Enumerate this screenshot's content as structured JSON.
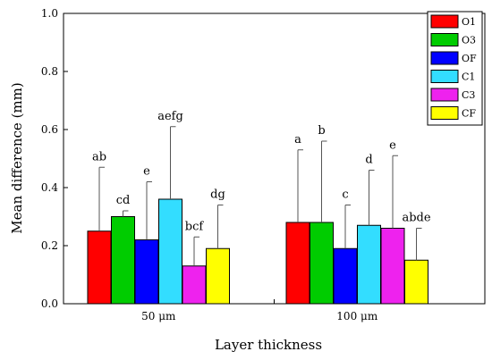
{
  "chart_data": {
    "type": "bar",
    "title": "",
    "xlabel": "Layer thickness",
    "ylabel": "Mean difference (mm)",
    "ylim": [
      0.0,
      1.0
    ],
    "yticks": [
      "0.0",
      "0.2",
      "0.4",
      "0.6",
      "0.8",
      "1.0"
    ],
    "categories": [
      "50 μm",
      "100 μm"
    ],
    "series": [
      {
        "name": "O1",
        "color": "#ff0000",
        "values": [
          0.25,
          0.28
        ],
        "error": [
          0.22,
          0.25
        ],
        "labels": [
          "ab",
          "a"
        ]
      },
      {
        "name": "O3",
        "color": "#00cc00",
        "values": [
          0.3,
          0.28
        ],
        "error": [
          0.02,
          0.28
        ],
        "labels": [
          "cd",
          "b"
        ]
      },
      {
        "name": "OF",
        "color": "#0000ff",
        "values": [
          0.22,
          0.19
        ],
        "error": [
          0.2,
          0.15
        ],
        "labels": [
          "e",
          "c"
        ]
      },
      {
        "name": "C1",
        "color": "#33ddff",
        "values": [
          0.36,
          0.27
        ],
        "error": [
          0.25,
          0.19
        ],
        "labels": [
          "aefg",
          "d"
        ]
      },
      {
        "name": "C3",
        "color": "#ee22ee",
        "values": [
          0.13,
          0.26
        ],
        "error": [
          0.1,
          0.25
        ],
        "labels": [
          "bcf",
          "e"
        ]
      },
      {
        "name": "CF",
        "color": "#ffff00",
        "values": [
          0.19,
          0.15
        ],
        "error": [
          0.15,
          0.11
        ],
        "labels": [
          "dg",
          "abde"
        ]
      }
    ],
    "legend_position": "top-right",
    "grid": false
  }
}
